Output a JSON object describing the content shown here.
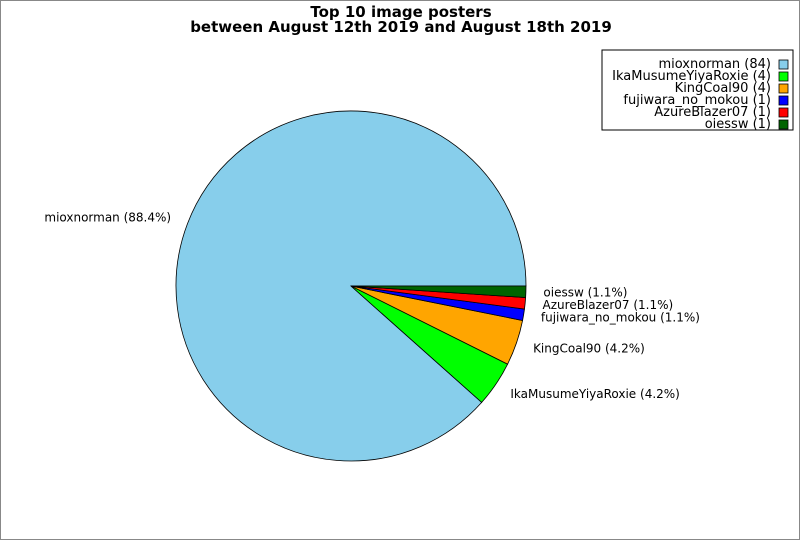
{
  "chart_data": {
    "type": "pie",
    "title": [
      "Top 10 image posters",
      "between August 12th 2019 and August 18th 2019"
    ],
    "start_angle_deg": 0,
    "direction": "counterclockwise",
    "legend_placement": "top-right",
    "slices": [
      {
        "name": "mioxnorman",
        "value": 84,
        "percent_label": "mioxnorman (88.4%)",
        "legend_label": "mioxnorman (84)",
        "color": "#87ceeb"
      },
      {
        "name": "IkaMusumeYiyaRoxie",
        "value": 4,
        "percent_label": "IkaMusumeYiyaRoxie (4.2%)",
        "legend_label": "IkaMusumeYiyaRoxie (4)",
        "color": "#00ff00"
      },
      {
        "name": "KingCoal90",
        "value": 4,
        "percent_label": "KingCoal90 (4.2%)",
        "legend_label": "KingCoal90 (4)",
        "color": "#ffa500"
      },
      {
        "name": "fujiwara_no_mokou",
        "value": 1,
        "percent_label": "fujiwara_no_mokou (1.1%)",
        "legend_label": "fujiwara_no_mokou (1)",
        "color": "#0000ff"
      },
      {
        "name": "AzureBlazer07",
        "value": 1,
        "percent_label": "AzureBlazer07 (1.1%)",
        "legend_label": "AzureBlazer07 (1)",
        "color": "#ff0000"
      },
      {
        "name": "oiessw",
        "value": 1,
        "percent_label": "oiessw (1.1%)",
        "legend_label": "oiessw (1)",
        "color": "#006400"
      }
    ]
  }
}
